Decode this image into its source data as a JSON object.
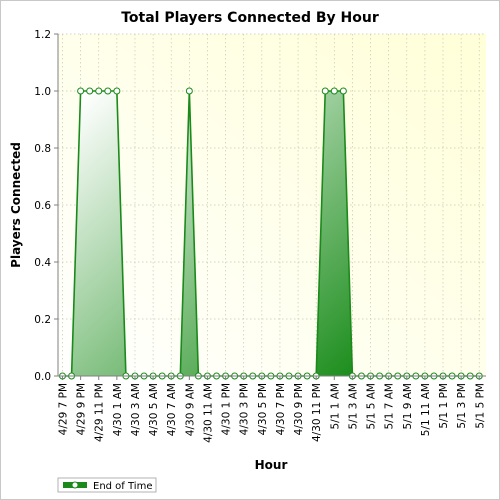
{
  "chart_data": {
    "type": "area",
    "title": "Total Players Connected By Hour",
    "xlabel": "Hour",
    "ylabel": "Players Connected",
    "ylim": [
      0,
      1.2
    ],
    "yticks": [
      "0.0",
      "0.2",
      "0.4",
      "0.6",
      "0.8",
      "1.0",
      "1.2"
    ],
    "categories": [
      "4/29 7 PM",
      "4/29 8 PM",
      "4/29 9 PM",
      "4/29 10 PM",
      "4/29 11 PM",
      "4/30 12 AM",
      "4/30 1 AM",
      "4/30 2 AM",
      "4/30 3 AM",
      "4/30 4 AM",
      "4/30 5 AM",
      "4/30 6 AM",
      "4/30 7 AM",
      "4/30 8 AM",
      "4/30 9 AM",
      "4/30 10 AM",
      "4/30 11 AM",
      "4/30 12 PM",
      "4/30 1 PM",
      "4/30 2 PM",
      "4/30 3 PM",
      "4/30 4 PM",
      "4/30 5 PM",
      "4/30 6 PM",
      "4/30 7 PM",
      "4/30 8 PM",
      "4/30 9 PM",
      "4/30 10 PM",
      "4/30 11 PM",
      "5/1 12 AM",
      "5/1 1 AM",
      "5/1 2 AM",
      "5/1 3 AM",
      "5/1 4 AM",
      "5/1 5 AM",
      "5/1 6 AM",
      "5/1 7 AM",
      "5/1 8 AM",
      "5/1 9 AM",
      "5/1 10 AM",
      "5/1 11 AM",
      "5/1 12 PM",
      "5/1 1 PM",
      "5/1 2 PM",
      "5/1 3 PM",
      "5/1 4 PM",
      "5/1 5 PM"
    ],
    "xtick_labels": [
      "4/29 7 PM",
      "4/29 9 PM",
      "4/29 11 PM",
      "4/30 1 AM",
      "4/30 3 AM",
      "4/30 5 AM",
      "4/30 7 AM",
      "4/30 9 AM",
      "4/30 11 AM",
      "4/30 1 PM",
      "4/30 3 PM",
      "4/30 5 PM",
      "4/30 7 PM",
      "4/30 9 PM",
      "4/30 11 PM",
      "5/1 1 AM",
      "5/1 3 AM",
      "5/1 5 AM",
      "5/1 7 AM",
      "5/1 9 AM",
      "5/1 11 AM",
      "5/1 1 PM",
      "5/1 3 PM",
      "5/1 5 PM"
    ],
    "series": [
      {
        "name": "End of Time",
        "color": "#1a8a1a",
        "values": [
          0,
          0,
          1,
          1,
          1,
          1,
          1,
          0,
          0,
          0,
          0,
          0,
          0,
          0,
          1,
          0,
          0,
          0,
          0,
          0,
          0,
          0,
          0,
          0,
          0,
          0,
          0,
          0,
          0,
          1,
          1,
          1,
          0,
          0,
          0,
          0,
          0,
          0,
          0,
          0,
          0,
          0,
          0,
          0,
          0,
          0,
          0
        ]
      }
    ],
    "grid": true,
    "legend": "bottom-left",
    "colors": {
      "plot_bg": "#ffffdc",
      "line": "#1a8a1a",
      "fill_light": "#ffffff",
      "fill_dark": "#239123"
    }
  }
}
